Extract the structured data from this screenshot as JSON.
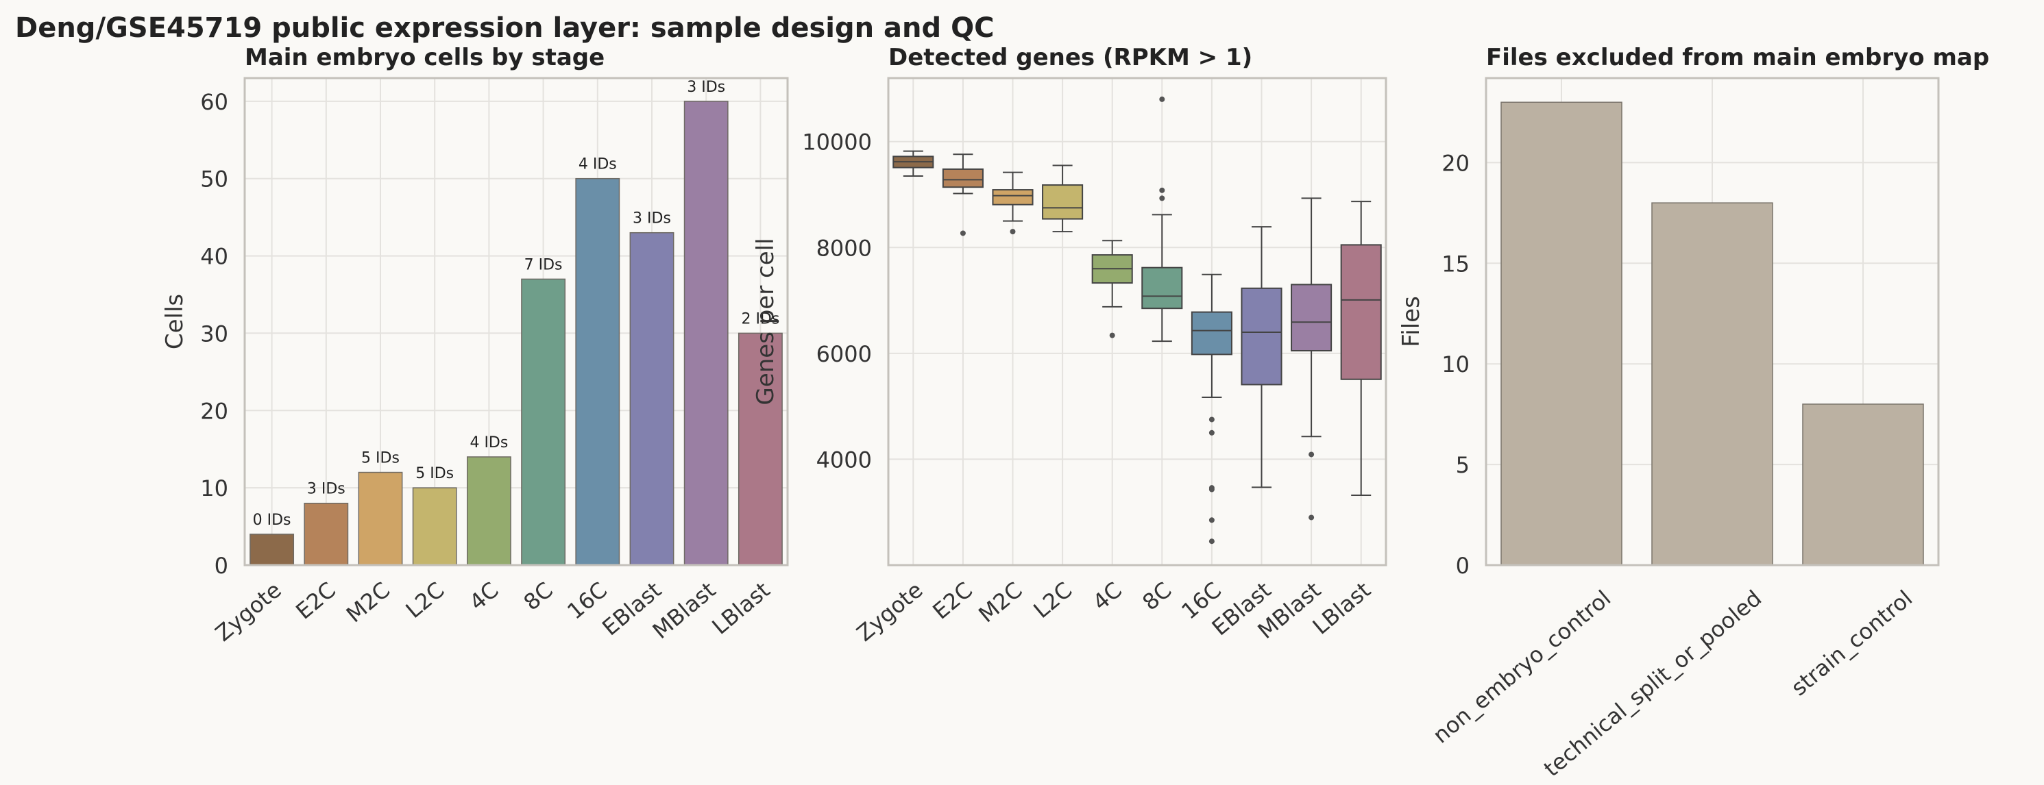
{
  "figure": {
    "title": "Deng/GSE45719 public expression layer: sample design and QC"
  },
  "colors": {
    "background": "#faf9f6",
    "grid": "#e4e2de",
    "frame": "#c4c1bb",
    "stages": [
      "#8c6a4a",
      "#b5835a",
      "#cfa466",
      "#c4b56d",
      "#94ab6e",
      "#6f9e8a",
      "#6a8fa8",
      "#8281ae",
      "#9a7fa3",
      "#ab7888"
    ],
    "excluded": "#bbb1a2"
  },
  "chart_data": [
    {
      "type": "bar",
      "title": "Main embryo cells by stage",
      "xlabel": "",
      "ylabel": "Cells",
      "categories": [
        "Zygote",
        "E2C",
        "M2C",
        "L2C",
        "4C",
        "8C",
        "16C",
        "EBlast",
        "MBlast",
        "LBlast"
      ],
      "values": [
        4,
        8,
        12,
        10,
        14,
        37,
        50,
        43,
        60,
        30
      ],
      "data_labels": [
        "0 IDs",
        "3 IDs",
        "5 IDs",
        "5 IDs",
        "4 IDs",
        "7 IDs",
        "4 IDs",
        "3 IDs",
        "3 IDs",
        "2 IDs"
      ],
      "ylim": [
        0,
        63
      ],
      "yticks": [
        0,
        10,
        20,
        30,
        40,
        50,
        60
      ],
      "grid": true
    },
    {
      "type": "box",
      "title": "Detected genes (RPKM > 1)",
      "xlabel": "",
      "ylabel": "Genes per cell",
      "categories": [
        "Zygote",
        "E2C",
        "M2C",
        "L2C",
        "4C",
        "8C",
        "16C",
        "EBlast",
        "MBlast",
        "LBlast"
      ],
      "boxes": [
        {
          "whislo": 9350,
          "q1": 9510,
          "med": 9620,
          "q3": 9720,
          "whishi": 9820,
          "fliers": []
        },
        {
          "whislo": 9020,
          "q1": 9140,
          "med": 9280,
          "q3": 9480,
          "whishi": 9760,
          "fliers": [
            8270
          ]
        },
        {
          "whislo": 8500,
          "q1": 8810,
          "med": 8980,
          "q3": 9090,
          "whishi": 9420,
          "fliers": [
            8300
          ]
        },
        {
          "whislo": 8300,
          "q1": 8540,
          "med": 8750,
          "q3": 9180,
          "whishi": 9550,
          "fliers": []
        },
        {
          "whislo": 6880,
          "q1": 7330,
          "med": 7600,
          "q3": 7860,
          "whishi": 8130,
          "fliers": [
            6340
          ]
        },
        {
          "whislo": 6230,
          "q1": 6850,
          "med": 7080,
          "q3": 7620,
          "whishi": 8620,
          "fliers": [
            9080,
            8930,
            10800
          ]
        },
        {
          "whislo": 5170,
          "q1": 5980,
          "med": 6430,
          "q3": 6780,
          "whishi": 7490,
          "fliers": [
            4750,
            4500,
            3460,
            3430,
            2850,
            2450
          ]
        },
        {
          "whislo": 3470,
          "q1": 5410,
          "med": 6400,
          "q3": 7230,
          "whishi": 8390,
          "fliers": []
        },
        {
          "whislo": 4430,
          "q1": 6050,
          "med": 6590,
          "q3": 7300,
          "whishi": 8930,
          "fliers": [
            4090,
            2900
          ]
        },
        {
          "whislo": 3320,
          "q1": 5510,
          "med": 7010,
          "q3": 8050,
          "whishi": 8870,
          "fliers": []
        }
      ],
      "ylim": [
        2000,
        11200
      ],
      "yticks": [
        4000,
        6000,
        8000,
        10000
      ],
      "grid": true
    },
    {
      "type": "bar",
      "title": "Files excluded from main embryo map",
      "xlabel": "",
      "ylabel": "Files",
      "categories": [
        "non_embryo_control",
        "technical_split_or_pooled",
        "strain_control"
      ],
      "values": [
        23,
        18,
        8
      ],
      "ylim": [
        0,
        24.2
      ],
      "yticks": [
        0,
        5,
        10,
        15,
        20
      ],
      "grid": true
    }
  ]
}
